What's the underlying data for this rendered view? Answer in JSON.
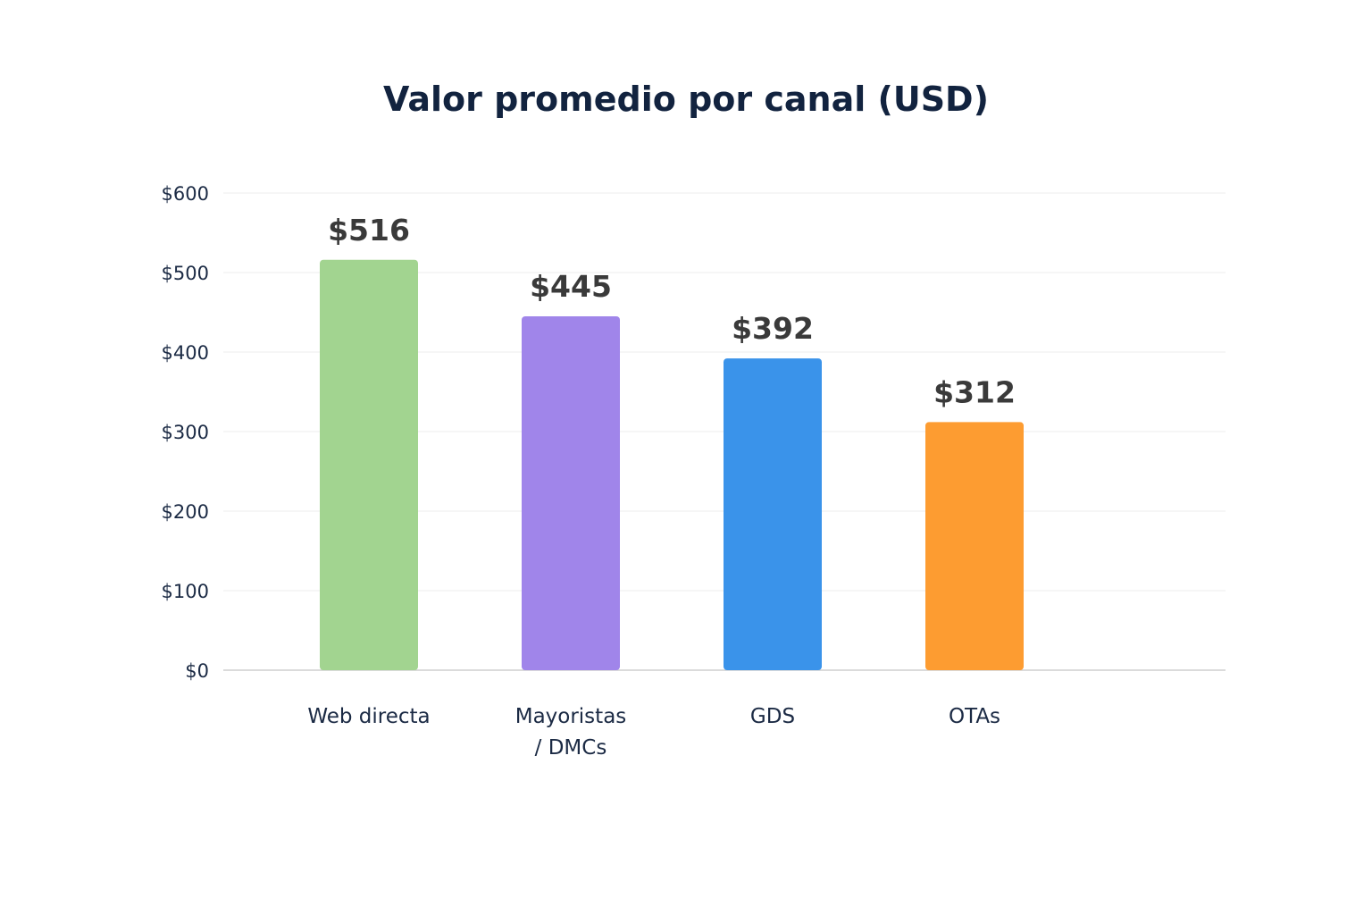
{
  "chart_data": {
    "type": "bar",
    "title": "Valor promedio por canal (USD)",
    "categories": [
      [
        "Web directa"
      ],
      [
        "Mayoristas",
        "/ DMCs"
      ],
      [
        "GDS"
      ],
      [
        "OTAs"
      ]
    ],
    "values": [
      516,
      445,
      392,
      312
    ],
    "value_labels": [
      "$516",
      "$445",
      "$392",
      "$312"
    ],
    "colors": [
      "#a2d490",
      "#a085ea",
      "#3a93ea",
      "#fd9c31"
    ],
    "ylim": [
      0,
      600
    ],
    "yticks": [
      0,
      100,
      200,
      300,
      400,
      500,
      600
    ],
    "ytick_labels": [
      "$0",
      "$100",
      "$200",
      "$300",
      "$400",
      "$500",
      "$600"
    ],
    "grid": true,
    "xlabel": "",
    "ylabel": ""
  }
}
